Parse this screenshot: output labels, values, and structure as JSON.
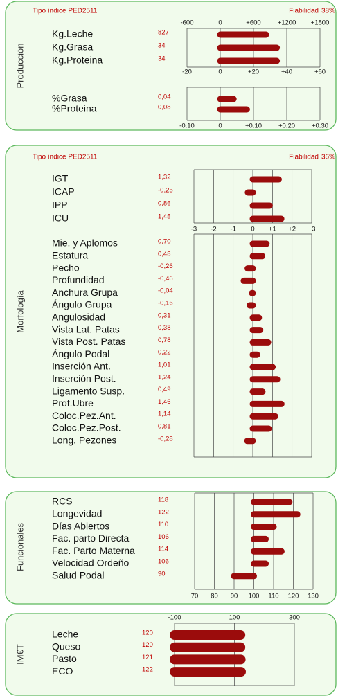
{
  "panels": [
    {
      "title": "Producción",
      "index_type": "Tipo índice PED2511",
      "reliability_label": "Fiabilidad",
      "reliability": "38%",
      "groups": [
        {
          "categories": [
            "Kg.Leche"
          ],
          "values": [
            827
          ],
          "xlim": [
            -600,
            1800
          ],
          "xticks": [
            -600,
            0,
            {
              "value": 600,
              "label": "+600"
            },
            {
              "value": 1200,
              "label": "+1200"
            },
            {
              "value": 1800,
              "label": "+1800"
            }
          ],
          "bar_base": 0
        },
        {
          "categories": [
            "Kg.Grasa",
            "Kg.Proteina"
          ],
          "values": [
            34,
            34
          ],
          "xlim": [
            -20,
            60
          ],
          "xticks": [
            -20,
            0,
            {
              "value": 20,
              "label": "+20"
            },
            {
              "value": 40,
              "label": "+40"
            },
            {
              "value": 60,
              "label": "+60"
            }
          ],
          "bar_base": 0
        },
        {
          "categories": [
            "%Grasa",
            "%Proteina"
          ],
          "values": [
            0.04,
            0.08
          ],
          "value_labels": [
            "0,04",
            "0,08"
          ],
          "xlim": [
            -0.1,
            0.3
          ],
          "xticks": [
            {
              "value": -0.1,
              "label": "-0.10"
            },
            0,
            {
              "value": 0.1,
              "label": "+0.10"
            },
            {
              "value": 0.2,
              "label": "+0.20"
            },
            {
              "value": 0.3,
              "label": "+0.30"
            }
          ],
          "bar_base": 0
        }
      ]
    },
    {
      "title": "Morfología",
      "index_type": "Tipo índice PED2511",
      "reliability_label": "Fiabilidad",
      "reliability": "36%",
      "groups": [
        {
          "categories": [
            "IGT",
            "ICAP",
            "IPP",
            "ICU"
          ],
          "values": [
            1.32,
            -0.25,
            0.86,
            1.45
          ],
          "value_labels": [
            "1,32",
            "-0,25",
            "0,86",
            "1,45"
          ],
          "xlim": [
            -3,
            3
          ],
          "xticks": [
            -3,
            -2,
            -1,
            0,
            {
              "value": 1,
              "label": "+1"
            },
            {
              "value": 2,
              "label": "+2"
            },
            {
              "value": 3,
              "label": "+3"
            }
          ],
          "bar_base": 0
        },
        {
          "categories": [
            "Mie. y Aplomos",
            "Estatura",
            "Pecho",
            "Profundidad",
            "Anchura Grupa",
            "Ángulo Grupa",
            "Angulosidad",
            "Vista Lat. Patas",
            "Vista Post. Patas",
            "Ángulo Podal",
            "Inserción Ant.",
            "Inserción Post.",
            "Ligamento Susp.",
            "Prof.Ubre",
            "Coloc.Pez.Ant.",
            "Coloc.Pez.Post.",
            "Long. Pezones"
          ],
          "values": [
            0.7,
            0.48,
            -0.26,
            -0.46,
            -0.04,
            -0.16,
            0.31,
            0.38,
            0.78,
            0.22,
            1.01,
            1.24,
            0.49,
            1.46,
            1.14,
            0.81,
            -0.28
          ],
          "value_labels": [
            "0,70",
            "0,48",
            "-0,26",
            "-0,46",
            "-0,04",
            "-0,16",
            "0,31",
            "0,38",
            "0,78",
            "0,22",
            "1,01",
            "1,24",
            "0,49",
            "1,46",
            "1,14",
            "0,81",
            "-0,28"
          ],
          "xlim": [
            -3,
            3
          ],
          "bar_base": 0
        }
      ]
    },
    {
      "title": "Funcionales",
      "groups": [
        {
          "categories": [
            "RCS",
            "Longevidad",
            "Días Abiertos",
            "Fac. parto Directa",
            "Fac. Parto Materna",
            "Velocidad Ordeño",
            "Salud Podal"
          ],
          "values": [
            118,
            122,
            110,
            106,
            114,
            106,
            90
          ],
          "xlim": [
            70,
            130
          ],
          "xticks": [
            70,
            80,
            90,
            100,
            110,
            120,
            130
          ],
          "bar_base": 100
        }
      ]
    },
    {
      "title": "IM€T",
      "groups": [
        {
          "categories": [
            "Leche",
            "Queso",
            "Pasto",
            "ECO"
          ],
          "values": [
            120,
            120,
            121,
            122
          ],
          "xlim": [
            -100,
            300
          ],
          "xticks": [
            -100,
            100,
            300
          ],
          "bar_base": -100
        }
      ]
    }
  ]
}
